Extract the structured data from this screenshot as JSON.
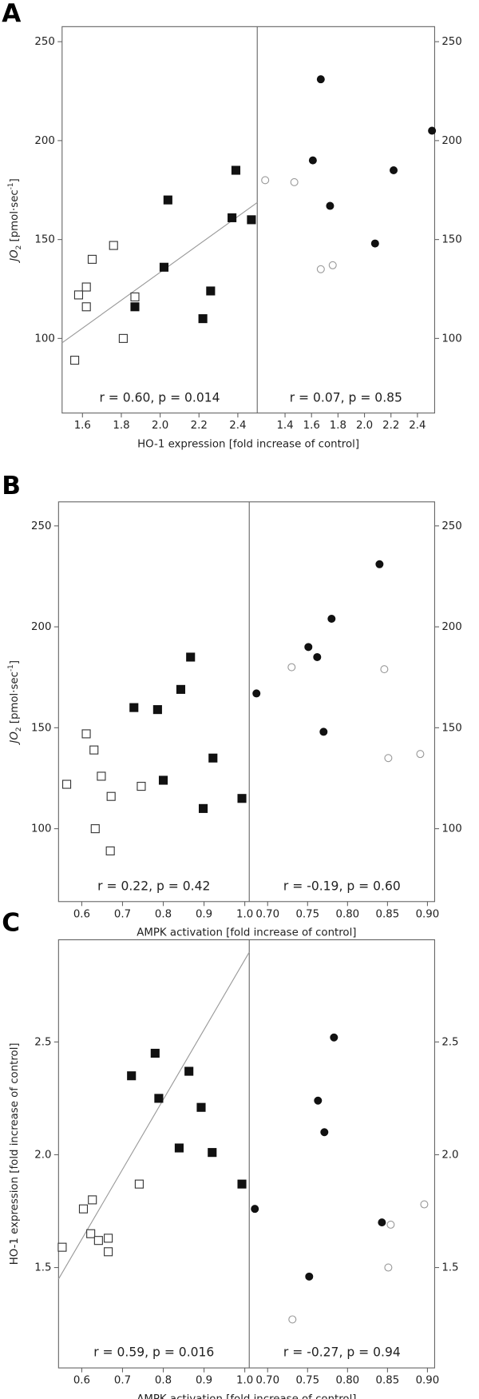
{
  "chart_data": [
    {
      "type": "scatter",
      "panel_label": "A",
      "ylabel_parts": [
        "JO",
        "2",
        " [pmol·sec",
        "-1",
        "]"
      ],
      "xlabel": "HO-1 expression [fold increase of control]",
      "ylim": [
        62.3,
        257.6
      ],
      "yticks": [
        100,
        150,
        200,
        250
      ],
      "subplots": [
        {
          "xlim": [
            1.495,
            2.5
          ],
          "xticks": [
            1.6,
            1.8,
            {
              "value": 2,
              "label": "2.0"
            },
            2.2,
            2.4
          ],
          "annotation": "r = 0.60, p = 0.014",
          "series": [
            {
              "marker": "square",
              "filled": false,
              "color": "#333333",
              "x": [
                1.56,
                1.58,
                1.62,
                1.62,
                1.65,
                1.76,
                1.87,
                1.81
              ],
              "y": [
                89,
                122,
                126,
                116,
                140,
                147,
                121,
                100
              ]
            },
            {
              "marker": "square",
              "filled": true,
              "color": "#111111",
              "x": [
                1.87,
                2.04,
                2.02,
                2.22,
                2.26,
                2.37,
                2.39,
                2.47
              ],
              "y": [
                116,
                170,
                136,
                110,
                124,
                161,
                185,
                160
              ]
            }
          ],
          "trendline": {
            "color": "#999999",
            "x": [
              1.495,
              2.5
            ],
            "y": [
              97.8,
              168.7
            ]
          }
        },
        {
          "xlim": [
            1.19,
            2.53
          ],
          "xticks": [
            1.4,
            1.6,
            1.8,
            {
              "value": 2,
              "label": "2.0"
            },
            2.2,
            2.4
          ],
          "annotation": "r = 0.07, p = 0.85",
          "series": [
            {
              "marker": "circle",
              "filled": true,
              "color": "#111111",
              "x": [
                1.67,
                1.61,
                1.74,
                2.22,
                2.08,
                2.51
              ],
              "y": [
                231,
                190,
                167,
                185,
                148,
                205
              ]
            },
            {
              "marker": "circle",
              "filled": false,
              "color": "#999999",
              "x": [
                1.25,
                1.47,
                1.67,
                1.76
              ],
              "y": [
                180,
                179,
                135,
                137
              ]
            }
          ]
        }
      ]
    },
    {
      "type": "scatter",
      "panel_label": "B",
      "ylabel_parts": [
        "JO",
        "2",
        " [pmol·sec",
        "-1",
        "]"
      ],
      "xlabel": "AMPK activation [fold increase of control]",
      "ylim": [
        63.9,
        261.9
      ],
      "yticks": [
        100,
        150,
        200,
        250
      ],
      "subplots": [
        {
          "xlim": [
            0.543,
            1.011
          ],
          "xticks": [
            0.6,
            0.7,
            0.8,
            0.9,
            {
              "value": 1,
              "label": "1.0"
            }
          ],
          "annotation": "r = 0.22, p = 0.42",
          "series": [
            {
              "marker": "square",
              "filled": false,
              "color": "#333333",
              "x": [
                0.563,
                0.611,
                0.63,
                0.648,
                0.672,
                0.633,
                0.67,
                0.746
              ],
              "y": [
                122,
                147,
                139,
                126,
                116,
                100,
                89,
                121
              ]
            },
            {
              "marker": "square",
              "filled": true,
              "color": "#111111",
              "x": [
                0.728,
                0.786,
                0.8,
                0.843,
                0.867,
                0.922,
                0.898,
                0.993
              ],
              "y": [
                160,
                159,
                124,
                169,
                185,
                135,
                110,
                115
              ]
            }
          ]
        },
        {
          "xlim": [
            0.677,
            0.909
          ],
          "xticks": [
            {
              "value": 0.7,
              "label": "0.70"
            },
            0.75,
            {
              "value": 0.8,
              "label": "0.80"
            },
            0.85,
            {
              "value": 0.9,
              "label": "0.90"
            }
          ],
          "annotation": "r = -0.19, p = 0.60",
          "series": [
            {
              "marker": "circle",
              "filled": true,
              "color": "#111111",
              "x": [
                0.686,
                0.751,
                0.762,
                0.78,
                0.77,
                0.84
              ],
              "y": [
                167,
                190,
                185,
                204,
                148,
                231
              ]
            },
            {
              "marker": "circle",
              "filled": false,
              "color": "#999999",
              "x": [
                0.73,
                0.846,
                0.851,
                0.891
              ],
              "y": [
                180,
                179,
                135,
                137
              ]
            }
          ]
        }
      ]
    },
    {
      "type": "scatter",
      "panel_label": "C",
      "ylabel_parts": [
        "HO-1 expression [fold increase of control]"
      ],
      "xlabel": "AMPK activation [fold increase of control]",
      "ylim": [
        1.055,
        2.953
      ],
      "yticks": [
        1.5,
        {
          "value": 2,
          "label": "2.0"
        },
        2.5
      ],
      "subplots": [
        {
          "xlim": [
            0.543,
            1.011
          ],
          "xticks": [
            0.6,
            0.7,
            0.8,
            0.9,
            {
              "value": 1,
              "label": "1.0"
            }
          ],
          "annotation": "r = 0.59, p = 0.016",
          "series": [
            {
              "marker": "square",
              "filled": false,
              "color": "#333333",
              "x": [
                0.552,
                0.604,
                0.626,
                0.622,
                0.641,
                0.665,
                0.665,
                0.741
              ],
              "y": [
                1.59,
                1.76,
                1.8,
                1.65,
                1.62,
                1.57,
                1.63,
                1.87
              ]
            },
            {
              "marker": "square",
              "filled": true,
              "color": "#111111",
              "x": [
                0.722,
                0.78,
                0.789,
                0.863,
                0.893,
                0.839,
                0.92,
                0.993
              ],
              "y": [
                2.35,
                2.45,
                2.25,
                2.37,
                2.21,
                2.03,
                2.01,
                1.87
              ]
            }
          ],
          "trendline": {
            "color": "#999999",
            "x": [
              0.543,
              1.011
            ],
            "y": [
              1.449,
              2.898
            ]
          }
        },
        {
          "xlim": [
            0.677,
            0.909
          ],
          "xticks": [
            {
              "value": 0.7,
              "label": "0.70"
            },
            0.75,
            {
              "value": 0.8,
              "label": "0.80"
            },
            0.85,
            {
              "value": 0.9,
              "label": "0.90"
            }
          ],
          "annotation": "r = -0.27, p = 0.94",
          "series": [
            {
              "marker": "circle",
              "filled": true,
              "color": "#111111",
              "x": [
                0.684,
                0.752,
                0.763,
                0.771,
                0.783,
                0.843
              ],
              "y": [
                1.76,
                1.46,
                2.24,
                2.1,
                2.52,
                1.7
              ]
            },
            {
              "marker": "circle",
              "filled": false,
              "color": "#999999",
              "x": [
                0.731,
                0.854,
                0.851,
                0.896
              ],
              "y": [
                1.27,
                1.69,
                1.5,
                1.78
              ]
            }
          ]
        }
      ]
    }
  ]
}
